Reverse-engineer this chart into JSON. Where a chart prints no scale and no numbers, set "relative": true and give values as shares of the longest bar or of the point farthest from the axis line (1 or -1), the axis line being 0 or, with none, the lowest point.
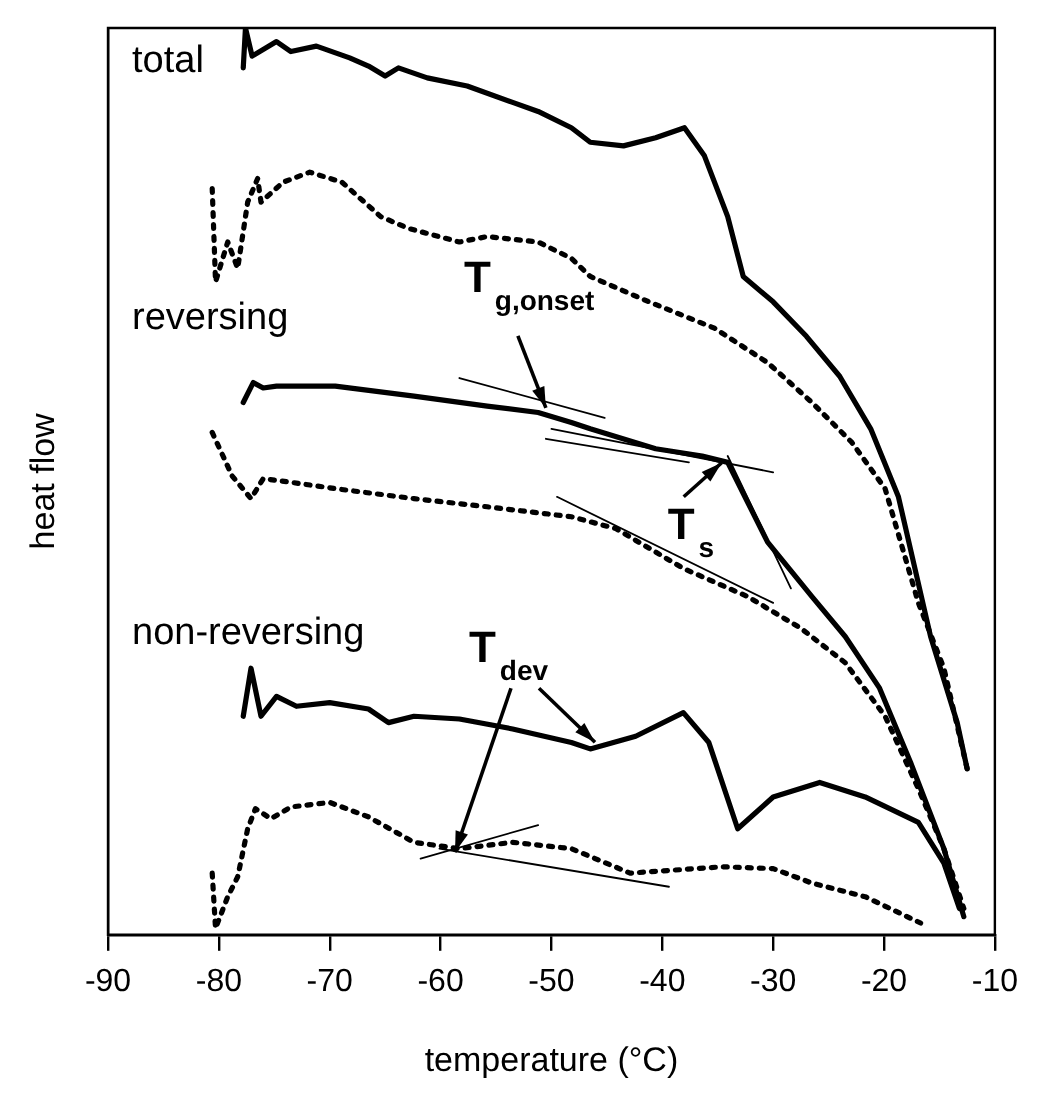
{
  "chart_data": {
    "type": "line",
    "xlabel": "temperature (°C)",
    "ylabel": "heat flow",
    "relative": true,
    "xlim": [
      -90,
      -10
    ],
    "xticks": [
      -90,
      -80,
      -70,
      -60,
      -50,
      -40,
      -30,
      -20,
      -10
    ],
    "grid": false,
    "legend": false,
    "marker": "none",
    "series": [
      {
        "name": "total",
        "color": "#000000",
        "line_style": "solid",
        "x": [
          -77.8,
          -77.6,
          -77.0,
          -74.8,
          -73.5,
          -71.2,
          -68.2,
          -66.5,
          -65.0,
          -63.8,
          -61.2,
          -57.6,
          -53.5,
          -51.2,
          -48.2,
          -46.5,
          -43.5,
          -40.6,
          -38.0,
          -36.2,
          -34.1,
          -32.7,
          -30.0,
          -27.0,
          -24.0,
          -21.2,
          -18.7,
          -15.8,
          -13.4,
          -12.5
        ],
        "values": [
          0.956,
          1.0,
          0.969,
          0.985,
          0.974,
          0.98,
          0.967,
          0.958,
          0.947,
          0.956,
          0.945,
          0.936,
          0.918,
          0.908,
          0.89,
          0.874,
          0.87,
          0.879,
          0.89,
          0.859,
          0.792,
          0.726,
          0.698,
          0.66,
          0.616,
          0.558,
          0.483,
          0.329,
          0.234,
          0.183
        ]
      },
      {
        "color": "#000000",
        "line_style": "dotted",
        "x": [
          -80.6,
          -80.3,
          -79.2,
          -78.3,
          -77.4,
          -76.5,
          -76.2,
          -74.2,
          -71.8,
          -68.9,
          -65.4,
          -62.9,
          -58.3,
          -55.8,
          -51.2,
          -48.2,
          -46.5,
          -41.2,
          -35.3,
          -30.5,
          -26.5,
          -22.9,
          -19.9,
          -16.9,
          -14.6,
          -12.5
        ],
        "values": [
          0.823,
          0.72,
          0.764,
          0.735,
          0.808,
          0.834,
          0.808,
          0.83,
          0.841,
          0.83,
          0.792,
          0.779,
          0.764,
          0.77,
          0.764,
          0.746,
          0.726,
          0.698,
          0.669,
          0.631,
          0.587,
          0.543,
          0.492,
          0.366,
          0.294,
          0.183
        ]
      },
      {
        "name": "reversing",
        "color": "#000000",
        "line_style": "solid",
        "x": [
          -77.8,
          -76.9,
          -76.0,
          -74.8,
          -73.0,
          -69.5,
          -62.4,
          -55.8,
          -51.2,
          -48.2,
          -46.5,
          -40.6,
          -36.4,
          -34.1,
          -32.3,
          -30.5,
          -26.5,
          -23.5,
          -20.4,
          -17.6,
          -14.6,
          -12.8
        ],
        "values": [
          0.587,
          0.609,
          0.603,
          0.605,
          0.605,
          0.605,
          0.594,
          0.583,
          0.576,
          0.565,
          0.558,
          0.536,
          0.528,
          0.521,
          0.477,
          0.433,
          0.373,
          0.329,
          0.272,
          0.19,
          0.095,
          0.02
        ]
      },
      {
        "color": "#000000",
        "line_style": "dotted",
        "x": [
          -80.6,
          -78.8,
          -77.1,
          -76.0,
          -73.5,
          -69.5,
          -62.4,
          -55.8,
          -48.2,
          -44.2,
          -38.1,
          -32.3,
          -27.5,
          -23.5,
          -19.9,
          -16.9,
          -14.6,
          -12.8
        ],
        "values": [
          0.554,
          0.506,
          0.481,
          0.503,
          0.499,
          0.492,
          0.481,
          0.472,
          0.461,
          0.448,
          0.404,
          0.373,
          0.338,
          0.3,
          0.241,
          0.161,
          0.095,
          0.029
        ]
      },
      {
        "name": "non-reversing",
        "color": "#000000",
        "line_style": "solid",
        "x": [
          -77.8,
          -77.1,
          -76.2,
          -74.8,
          -73.0,
          -70.0,
          -66.5,
          -64.7,
          -62.4,
          -58.3,
          -53.5,
          -48.2,
          -46.5,
          -42.4,
          -38.1,
          -35.8,
          -33.2,
          -30.0,
          -25.8,
          -21.7,
          -16.9,
          -14.6,
          -13.2
        ],
        "values": [
          0.241,
          0.294,
          0.241,
          0.263,
          0.252,
          0.256,
          0.249,
          0.234,
          0.241,
          0.238,
          0.227,
          0.212,
          0.205,
          0.219,
          0.245,
          0.212,
          0.117,
          0.152,
          0.168,
          0.152,
          0.124,
          0.079,
          0.029
        ]
      },
      {
        "color": "#000000",
        "line_style": "dotted",
        "x": [
          -80.6,
          -80.3,
          -79.2,
          -78.3,
          -77.4,
          -76.7,
          -75.3,
          -73.5,
          -70.0,
          -66.5,
          -62.4,
          -58.3,
          -53.5,
          -48.2,
          -42.9,
          -34.6,
          -30.0,
          -26.5,
          -21.7,
          -16.7
        ],
        "values": [
          0.068,
          0.007,
          0.042,
          0.064,
          0.117,
          0.139,
          0.128,
          0.141,
          0.146,
          0.13,
          0.102,
          0.095,
          0.102,
          0.095,
          0.068,
          0.075,
          0.073,
          0.057,
          0.042,
          0.013
        ]
      },
      {
        "color": "#000000",
        "x": [
          -58.3,
          -45.2
        ],
        "values": [
          0.614,
          0.57
        ]
      },
      {
        "color": "#000000",
        "x": [
          -50.5,
          -37.6
        ],
        "values": [
          0.547,
          0.521
        ]
      },
      {
        "color": "#000000",
        "x": [
          -50.0,
          -30.0
        ],
        "values": [
          0.558,
          0.51
        ]
      },
      {
        "color": "#000000",
        "x": [
          -34.1,
          -28.4
        ],
        "values": [
          0.528,
          0.382
        ]
      },
      {
        "color": "#000000",
        "x": [
          -49.5,
          -30.0
        ],
        "values": [
          0.483,
          0.366
        ]
      },
      {
        "color": "#000000",
        "x": [
          -61.8,
          -51.2
        ],
        "values": [
          0.084,
          0.121
        ]
      },
      {
        "color": "#000000",
        "x": [
          -60.1,
          -39.4
        ],
        "values": [
          0.095,
          0.053
        ]
      }
    ],
    "annotations": [
      {
        "text": "T$_{g,onset}$",
        "x": -50.5,
        "y": 0.581
      },
      {
        "text": "T$_{s}$",
        "x": -34.1,
        "y": 0.525
      },
      {
        "text": "T$_{dev}$",
        "x": -58.7,
        "y": 0.091
      }
    ]
  }
}
